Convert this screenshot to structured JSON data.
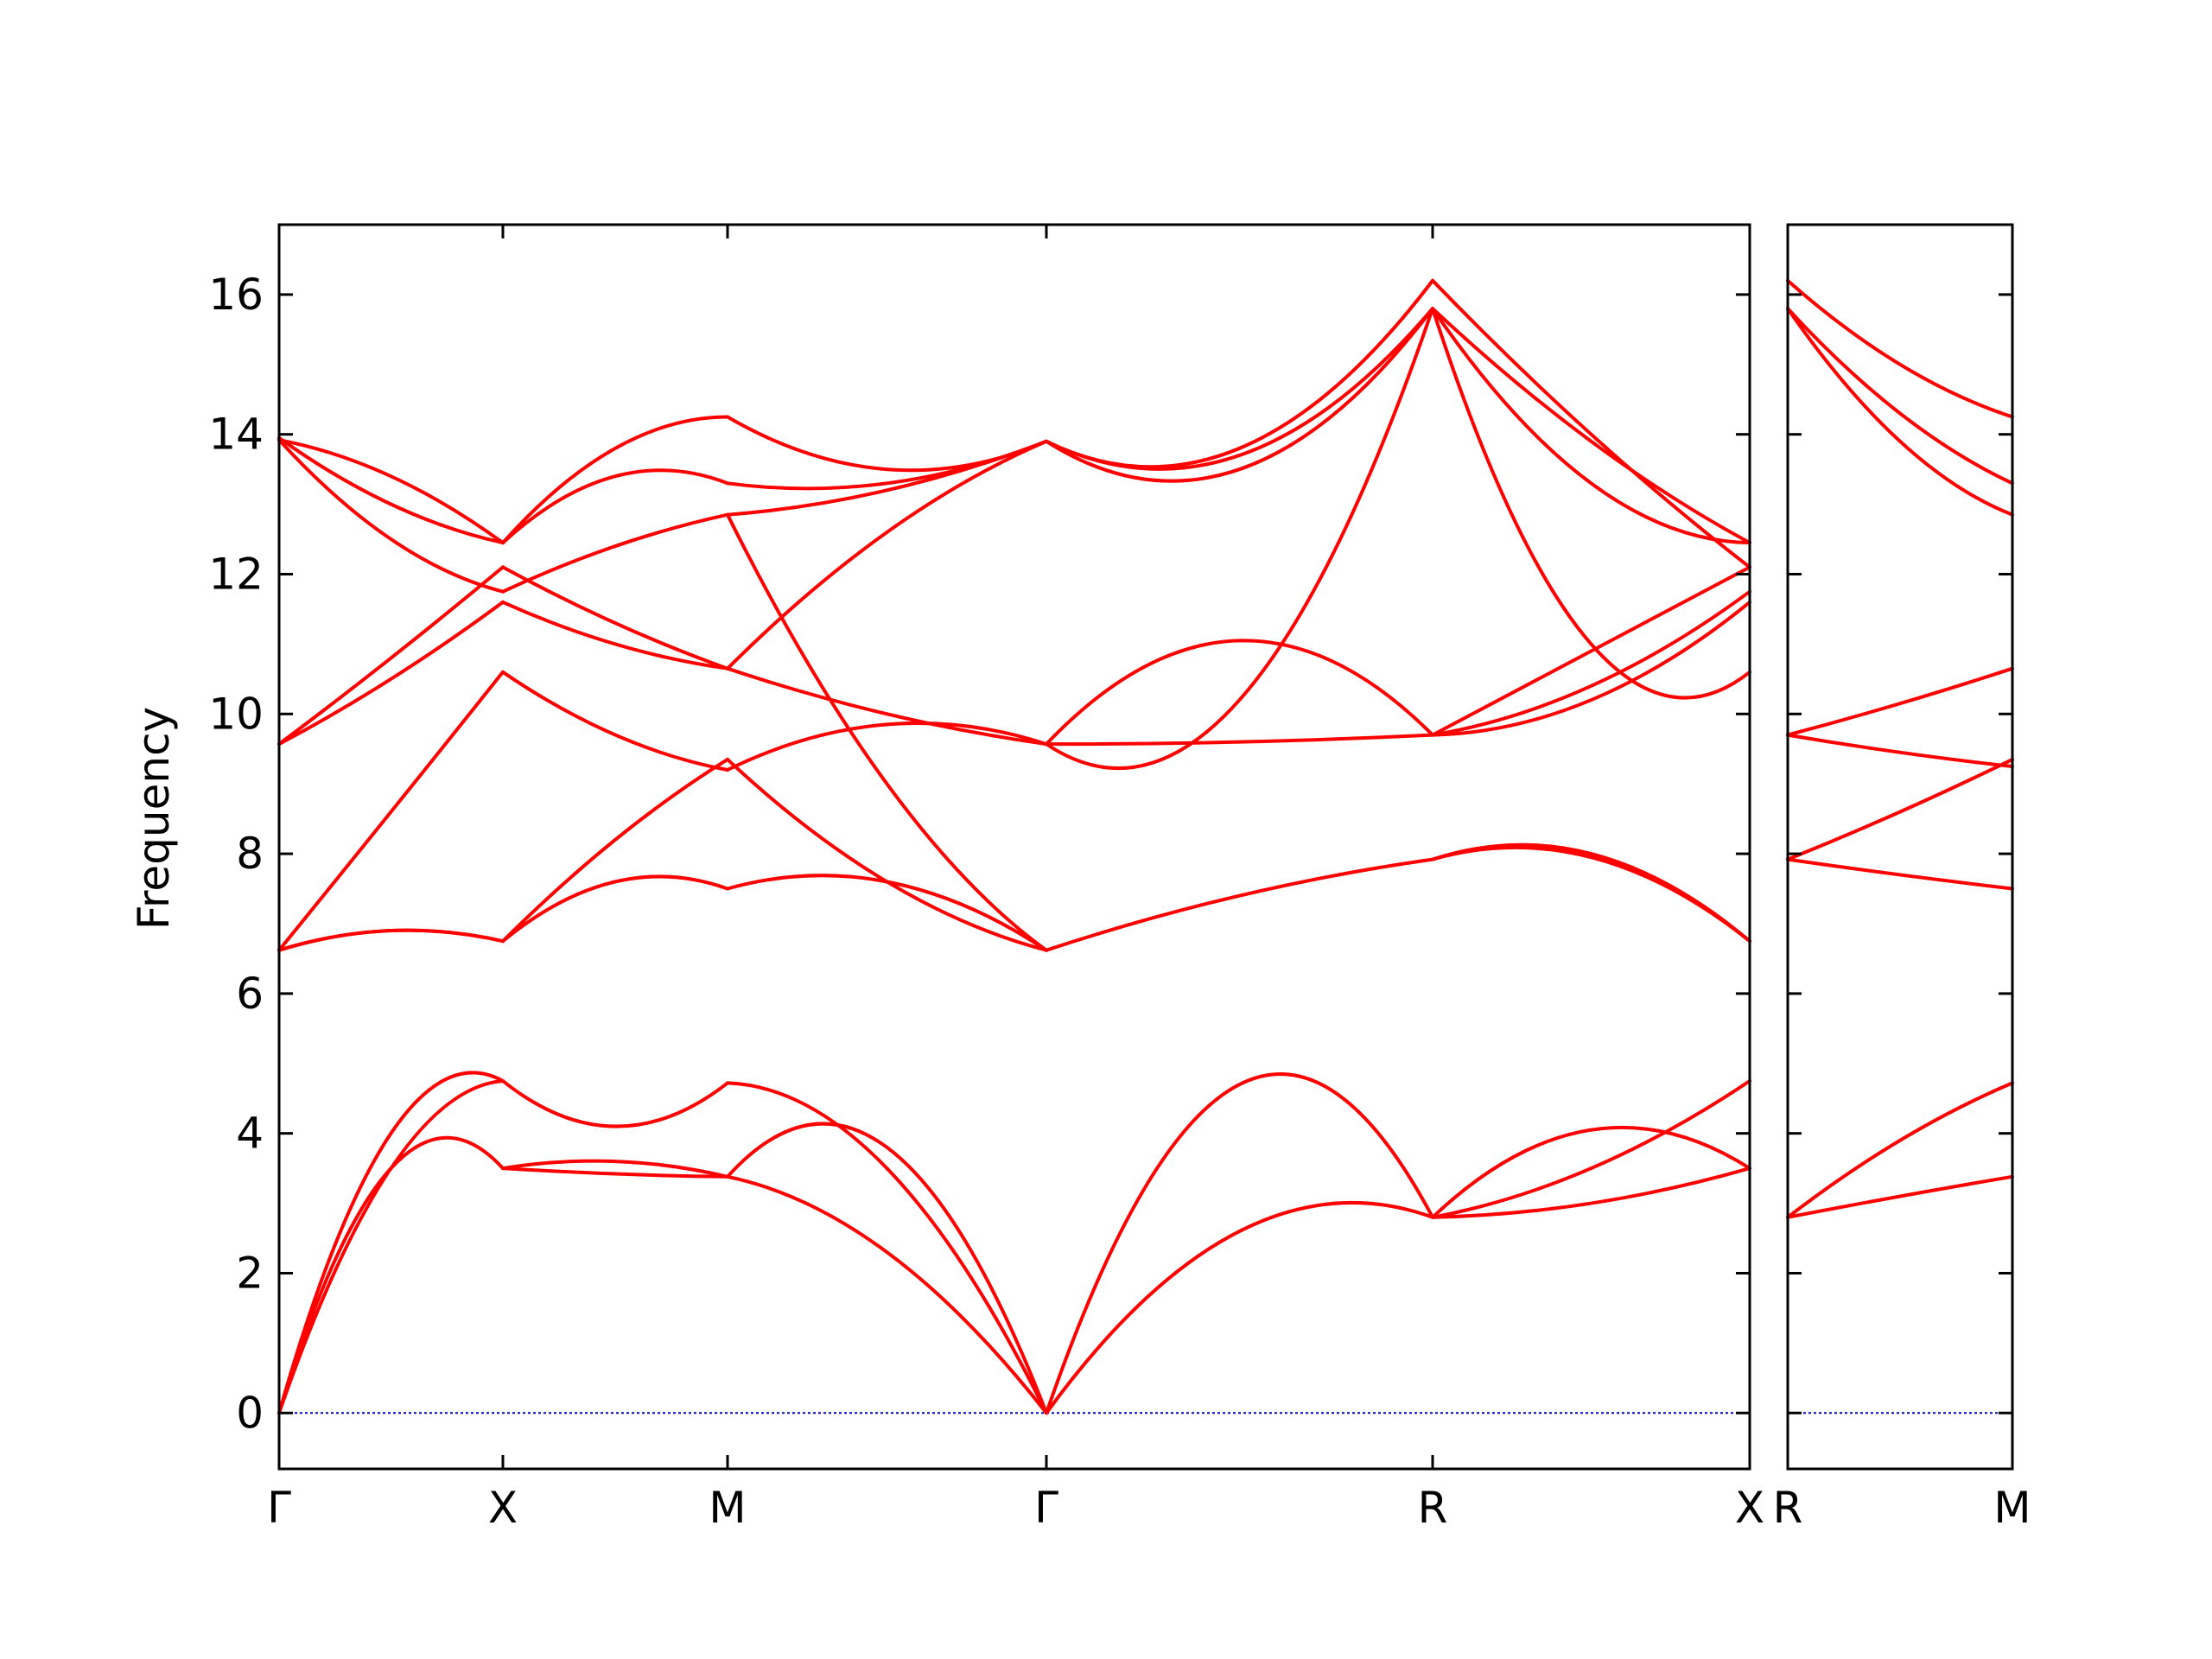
{
  "chart_data": {
    "type": "line",
    "ylabel": "Frequency",
    "ylim": [
      -0.8,
      17.0
    ],
    "yticks": [
      0,
      2,
      4,
      6,
      8,
      10,
      12,
      14,
      16
    ],
    "ytick_labels": [
      "0",
      "2",
      "4",
      "6",
      "8",
      "10",
      "12",
      "14",
      "16"
    ],
    "line_color": "#ff0000",
    "zero_line_color": "#0000cc",
    "grid": false,
    "panels": [
      {
        "name": "left",
        "x_labels": [
          "Γ",
          "X",
          "M",
          "Γ",
          "R",
          "X"
        ],
        "segments": [
          {
            "from": "Γ",
            "to": "X",
            "bands": [
              [
                0,
                3.5,
                3.5
              ],
              [
                0,
                3.5,
                4.75
              ],
              [
                0,
                4.0,
                4.75
              ],
              [
                6.62,
                6.9,
                6.75
              ],
              [
                6.62,
                6.9,
                6.75
              ],
              [
                6.62,
                8.6,
                10.6
              ],
              [
                9.57,
                10.5,
                11.6
              ],
              [
                9.57,
                10.8,
                12.1
              ],
              [
                13.92,
                12.5,
                11.75
              ],
              [
                13.92,
                13.4,
                12.45
              ],
              [
                13.95,
                13.0,
                12.45
              ]
            ]
          },
          {
            "from": "X",
            "to": "M",
            "bands": [
              [
                3.5,
                3.42,
                3.38
              ],
              [
                3.5,
                3.6,
                3.38
              ],
              [
                4.75,
                4.1,
                4.72
              ],
              [
                6.75,
                7.6,
                7.5
              ],
              [
                6.75,
                8.2,
                9.35
              ],
              [
                10.6,
                9.7,
                9.2
              ],
              [
                11.6,
                11.0,
                10.65
              ],
              [
                12.1,
                11.3,
                10.65
              ],
              [
                11.75,
                12.4,
                12.85
              ],
              [
                12.45,
                13.4,
                13.3
              ],
              [
                12.45,
                13.8,
                14.25
              ]
            ]
          },
          {
            "from": "M",
            "to": "Γ",
            "bands": [
              [
                3.38,
                2.3,
                0
              ],
              [
                3.38,
                3.8,
                0
              ],
              [
                4.72,
                3.5,
                0
              ],
              [
                7.5,
                7.6,
                6.62
              ],
              [
                9.35,
                7.6,
                6.62
              ],
              [
                9.2,
                9.85,
                9.57
              ],
              [
                10.65,
                10.0,
                9.57
              ],
              [
                12.85,
                9.0,
                6.62
              ],
              [
                10.65,
                12.6,
                13.9
              ],
              [
                12.85,
                13.2,
                13.9
              ],
              [
                13.3,
                13.3,
                13.9
              ],
              [
                14.25,
                13.5,
                13.9
              ]
            ]
          },
          {
            "from": "Γ",
            "to": "R",
            "bands": [
              [
                0,
                2.6,
                2.8
              ],
              [
                0,
                4.7,
                2.8
              ],
              [
                6.62,
                7.4,
                7.92
              ],
              [
                9.57,
                10.2,
                15.8
              ],
              [
                9.57,
                9.6,
                9.7
              ],
              [
                9.57,
                11.05,
                9.7
              ],
              [
                13.9,
                13.5,
                15.8
              ],
              [
                13.9,
                13.7,
                15.8
              ],
              [
                13.9,
                13.8,
                16.2
              ]
            ]
          },
          {
            "from": "R",
            "to": "X",
            "bands": [
              [
                2.8,
                3.0,
                3.5
              ],
              [
                2.8,
                4.05,
                3.5
              ],
              [
                2.8,
                3.5,
                4.75
              ],
              [
                7.92,
                8.0,
                6.75
              ],
              [
                7.92,
                7.95,
                6.75
              ],
              [
                9.7,
                10.9,
                12.1
              ],
              [
                9.7,
                10.4,
                11.75
              ],
              [
                9.7,
                10.2,
                11.6
              ],
              [
                15.8,
                11.0,
                10.6
              ],
              [
                15.8,
                13.3,
                12.45
              ],
              [
                15.8,
                13.9,
                12.45
              ],
              [
                16.2,
                14.0,
                12.1
              ]
            ]
          }
        ]
      },
      {
        "name": "right",
        "x_labels": [
          "R",
          "M"
        ],
        "segments": [
          {
            "from": "R",
            "to": "M",
            "bands": [
              [
                2.8,
                3.1,
                3.38
              ],
              [
                2.8,
                3.9,
                4.72
              ],
              [
                7.92,
                7.7,
                7.5
              ],
              [
                7.92,
                8.6,
                9.35
              ],
              [
                9.7,
                9.45,
                9.25
              ],
              [
                9.7,
                10.15,
                10.65
              ],
              [
                15.8,
                13.9,
                12.85
              ],
              [
                15.8,
                14.3,
                13.3
              ],
              [
                16.2,
                15.0,
                14.25
              ]
            ]
          }
        ]
      }
    ]
  }
}
